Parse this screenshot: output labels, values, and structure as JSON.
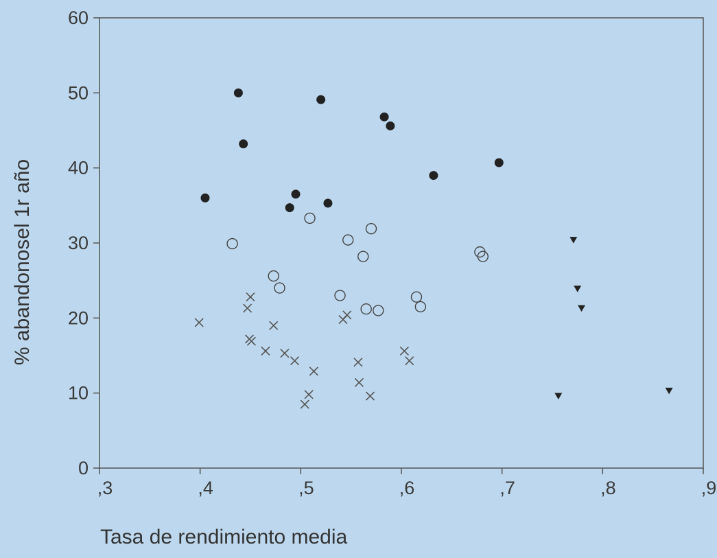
{
  "chart_data": {
    "type": "scatter",
    "xlabel": "Tasa de rendimiento media",
    "ylabel": "% abandonosel 1r año",
    "xlim": [
      0.3,
      0.9
    ],
    "ylim": [
      0,
      60
    ],
    "x_ticks": [
      0.3,
      0.4,
      0.5,
      0.6,
      0.7,
      0.8,
      0.9
    ],
    "x_tick_labels": [
      ",3",
      ",4",
      ",5",
      ",6",
      ",7",
      ",8",
      ",9"
    ],
    "y_ticks": [
      0,
      10,
      20,
      30,
      40,
      50,
      60
    ],
    "y_tick_labels": [
      "0",
      "10",
      "20",
      "30",
      "40",
      "50",
      "60"
    ],
    "grid": false,
    "legend": "none",
    "series": [
      {
        "marker": "filled-circle",
        "color": "#222222",
        "points": [
          [
            0.405,
            36.0
          ],
          [
            0.438,
            50.0
          ],
          [
            0.443,
            43.2
          ],
          [
            0.489,
            34.7
          ],
          [
            0.495,
            36.5
          ],
          [
            0.52,
            49.1
          ],
          [
            0.527,
            35.3
          ],
          [
            0.583,
            46.8
          ],
          [
            0.589,
            45.6
          ],
          [
            0.632,
            39.0
          ],
          [
            0.697,
            40.7
          ]
        ]
      },
      {
        "marker": "open-circle",
        "color": "#444444",
        "points": [
          [
            0.432,
            29.9
          ],
          [
            0.473,
            25.6
          ],
          [
            0.479,
            24.0
          ],
          [
            0.509,
            33.3
          ],
          [
            0.539,
            23.0
          ],
          [
            0.547,
            30.4
          ],
          [
            0.562,
            28.2
          ],
          [
            0.565,
            21.2
          ],
          [
            0.57,
            31.9
          ],
          [
            0.577,
            21.0
          ],
          [
            0.615,
            22.8
          ],
          [
            0.619,
            21.5
          ],
          [
            0.678,
            28.8
          ],
          [
            0.681,
            28.2
          ]
        ]
      },
      {
        "marker": "cross",
        "color": "#555555",
        "points": [
          [
            0.399,
            19.4
          ],
          [
            0.447,
            21.3
          ],
          [
            0.45,
            22.8
          ],
          [
            0.449,
            17.2
          ],
          [
            0.451,
            16.9
          ],
          [
            0.473,
            19.0
          ],
          [
            0.465,
            15.6
          ],
          [
            0.484,
            15.3
          ],
          [
            0.494,
            14.3
          ],
          [
            0.504,
            8.5
          ],
          [
            0.508,
            9.8
          ],
          [
            0.513,
            12.9
          ],
          [
            0.542,
            19.8
          ],
          [
            0.546,
            20.4
          ],
          [
            0.557,
            14.1
          ],
          [
            0.558,
            11.4
          ],
          [
            0.569,
            9.6
          ],
          [
            0.603,
            15.6
          ],
          [
            0.608,
            14.3
          ]
        ]
      },
      {
        "marker": "filled-triangle-down",
        "color": "#222222",
        "points": [
          [
            0.771,
            30.4
          ],
          [
            0.775,
            23.9
          ],
          [
            0.779,
            21.3
          ],
          [
            0.756,
            9.6
          ],
          [
            0.866,
            10.3
          ]
        ]
      }
    ]
  }
}
